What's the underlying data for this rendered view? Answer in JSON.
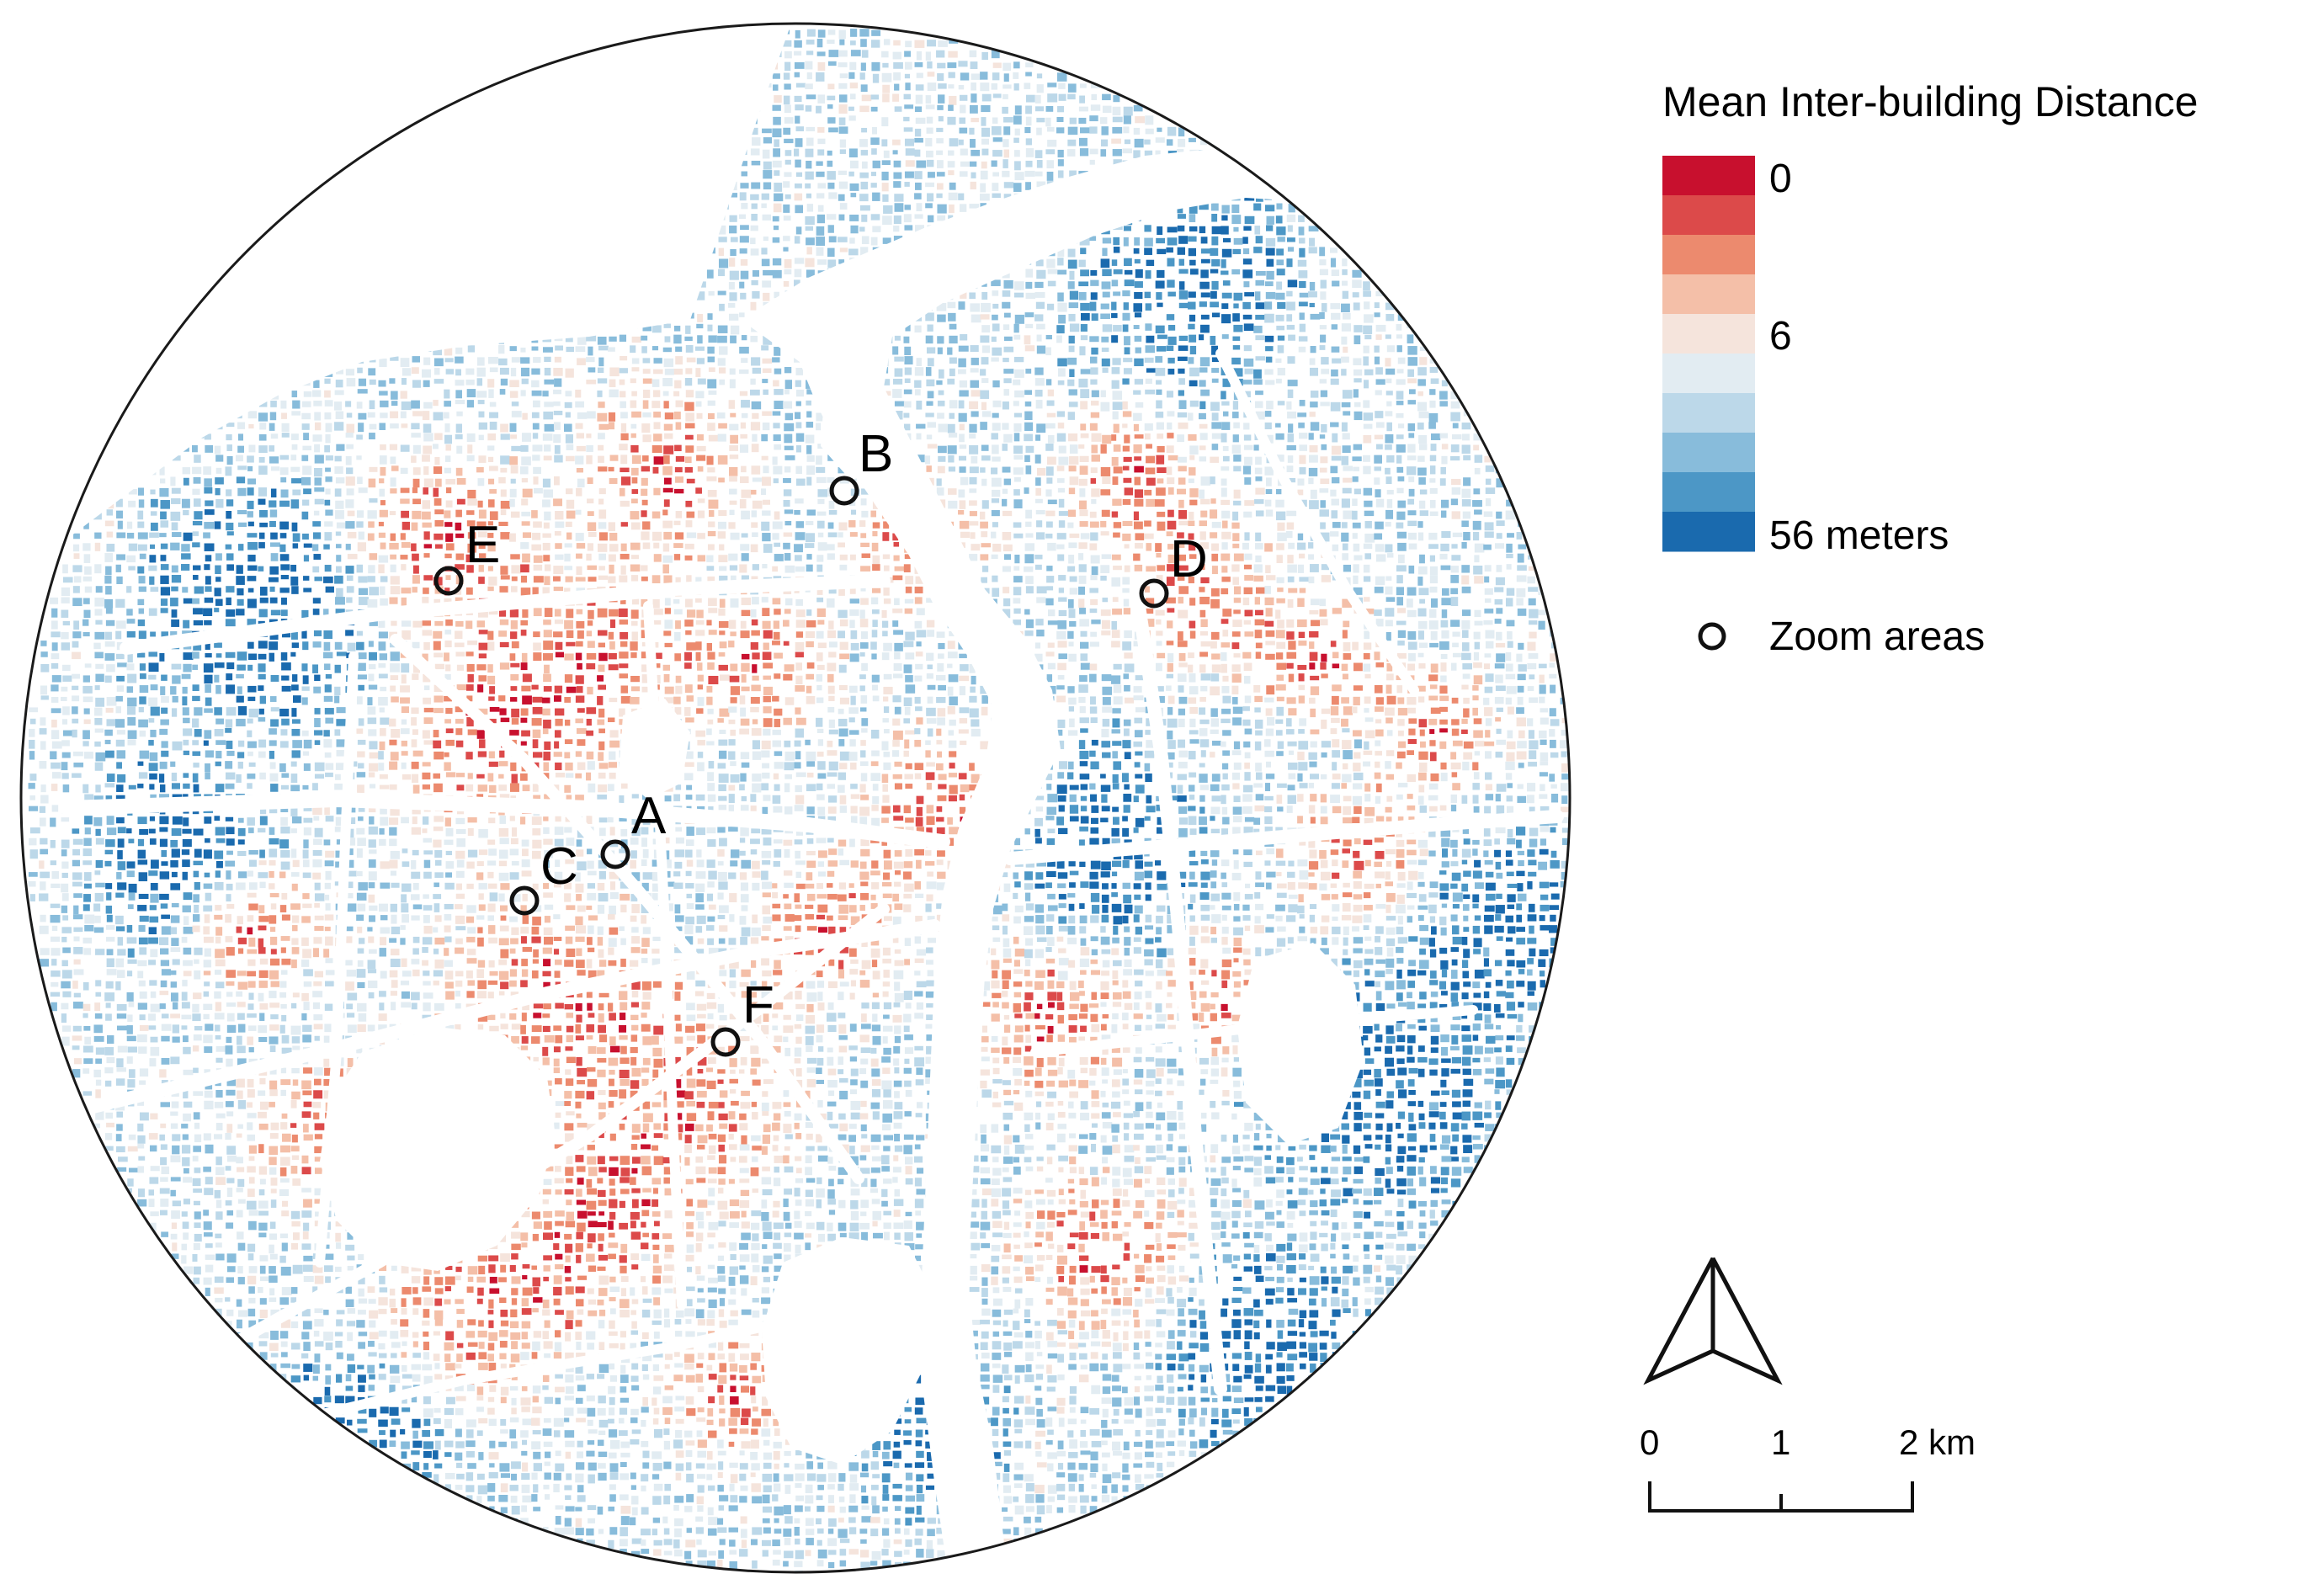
{
  "legend": {
    "title": "Mean Inter-building Distance",
    "bins": [
      "#c8102e",
      "#dc4a4a",
      "#ec8a6e",
      "#f4bfa8",
      "#f5e4dc",
      "#e2ecf2",
      "#bcd8e9",
      "#88bcdb",
      "#4c97c6",
      "#1a6aae"
    ],
    "labels": {
      "min": "0",
      "mid": "6",
      "max": "56 meters"
    },
    "zoom_label": "Zoom areas"
  },
  "zoom_areas": [
    {
      "id": "A",
      "label": "A"
    },
    {
      "id": "B",
      "label": "B"
    },
    {
      "id": "C",
      "label": "C"
    },
    {
      "id": "D",
      "label": "D"
    },
    {
      "id": "E",
      "label": "E"
    },
    {
      "id": "F",
      "label": "F"
    }
  ],
  "scale_bar": {
    "ticks": [
      "0",
      "1",
      "2 km"
    ]
  },
  "north_arrow": {
    "icon": "north-arrow-icon"
  },
  "colors": {
    "dense_red": "#c8102e",
    "sparse_blue": "#1a6aae",
    "outline": "#1a1a1a"
  }
}
